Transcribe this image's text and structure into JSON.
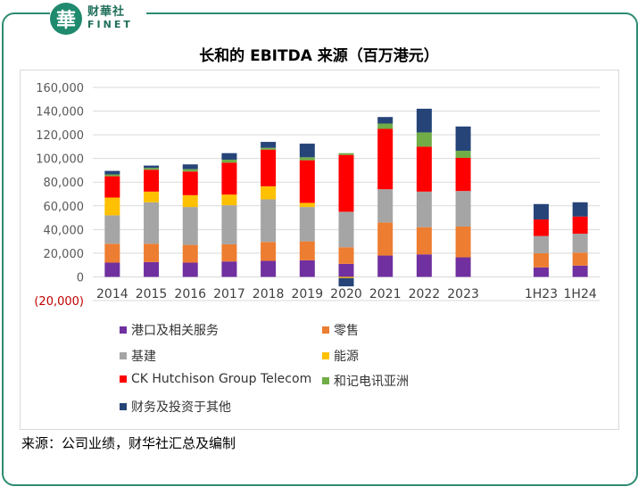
{
  "brand": {
    "mark": "華",
    "name_cn": "财華社",
    "name_en": "FINET"
  },
  "chart_data": {
    "type": "bar",
    "stacked": true,
    "title": "长和的 EBITDA 来源（百万港元）",
    "categories": [
      "2014",
      "2015",
      "2016",
      "2017",
      "2018",
      "2019",
      "2020",
      "2021",
      "2022",
      "2023",
      "",
      "1H23",
      "1H24"
    ],
    "ylim": [
      -20000,
      160000
    ],
    "yticks": [
      -20000,
      0,
      20000,
      40000,
      60000,
      80000,
      100000,
      120000,
      140000,
      160000
    ],
    "ytick_labels": [
      "(20,000)",
      "0",
      "20,000",
      "40,000",
      "60,000",
      "80,000",
      "100,000",
      "120,000",
      "140,000",
      "160,000"
    ],
    "grid": true,
    "legend_position": "bottom",
    "series": [
      {
        "name": "港口及相关服务",
        "color": "#7030a0",
        "values": [
          12000,
          12500,
          12000,
          13000,
          13500,
          14000,
          11000,
          18000,
          19000,
          16500,
          null,
          8000,
          9500
        ]
      },
      {
        "name": "零售",
        "color": "#ed7d31",
        "values": [
          16000,
          15500,
          15000,
          14500,
          16000,
          16000,
          14000,
          28000,
          23000,
          26000,
          null,
          12000,
          11000
        ]
      },
      {
        "name": "基建",
        "color": "#a5a5a5",
        "values": [
          24000,
          35000,
          32000,
          33000,
          36000,
          29000,
          30000,
          28000,
          30000,
          30000,
          null,
          14500,
          16000
        ]
      },
      {
        "name": "能源",
        "color": "#ffc000",
        "values": [
          15000,
          9000,
          10000,
          9000,
          11000,
          3500,
          -1000,
          0,
          0,
          0,
          null,
          0,
          0
        ]
      },
      {
        "name": "CK Hutchison Group Telecom",
        "color": "#ff0000",
        "values": [
          18000,
          18500,
          20000,
          27000,
          31000,
          36000,
          48000,
          51000,
          38000,
          28000,
          null,
          14000,
          14500
        ]
      },
      {
        "name": "和记电讯亚洲",
        "color": "#70ad47",
        "values": [
          1500,
          1500,
          2000,
          2500,
          1500,
          2500,
          1500,
          4500,
          12000,
          6000,
          null,
          0,
          0
        ]
      },
      {
        "name": "财务及投资于其他",
        "color": "#264478",
        "values": [
          3000,
          2000,
          4000,
          5500,
          5000,
          11500,
          -7000,
          5500,
          20000,
          20500,
          null,
          13000,
          12000
        ]
      }
    ]
  },
  "source_text": "来源：公司业绩，财华社汇总及编制"
}
